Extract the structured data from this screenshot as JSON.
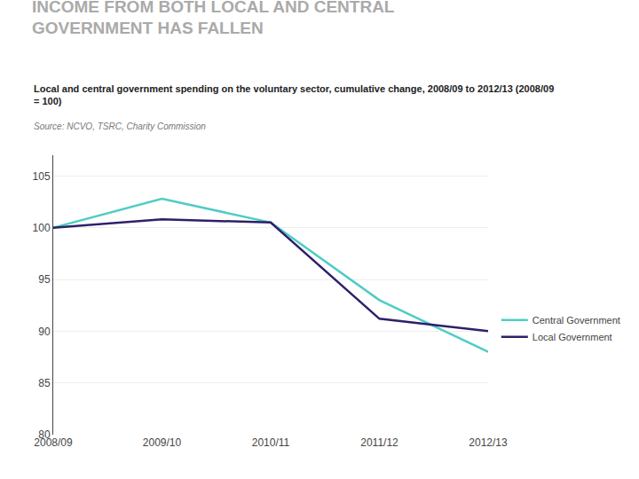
{
  "chart_data": {
    "type": "line",
    "title": "INCOME FROM BOTH LOCAL AND CENTRAL\nGOVERNMENT HAS FALLEN",
    "subtitle": "Local and central government spending on the voluntary sector, cumulative change, 2008/09 to 2012/13 (2008/09\n= 100)",
    "annotations": [
      "Source: NCVO, TSRC, Charity Commission"
    ],
    "categories": [
      "2008/09",
      "2009/10",
      "2010/11",
      "2011/12",
      "2012/13"
    ],
    "series": [
      {
        "name": "Central Government",
        "color": "#4ECDC4",
        "values": [
          100,
          102.8,
          100.5,
          93.0,
          88.0
        ]
      },
      {
        "name": "Local Government",
        "color": "#2E1F6B",
        "values": [
          100,
          100.8,
          100.5,
          91.2,
          90.0
        ]
      }
    ],
    "ylim": [
      80,
      107
    ],
    "yticks": [
      80,
      85,
      90,
      95,
      100,
      105
    ],
    "grid": true,
    "legend": "right"
  }
}
